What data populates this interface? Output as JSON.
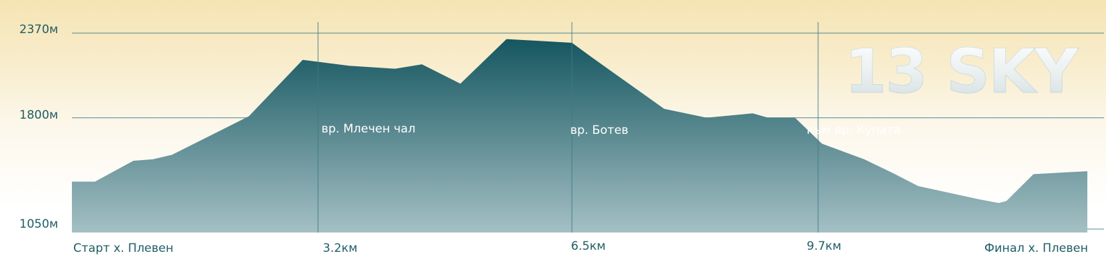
{
  "brand": "13 SKY",
  "colors": {
    "area_top": "#155660",
    "area_bottom": "#a4c0c4",
    "grid": "#3e7a84",
    "text": "#1f5c66"
  },
  "y_labels": [
    "2370м",
    "1800м",
    "1050м"
  ],
  "x_labels": [
    "Старт х. Плевен",
    "3.2км",
    "6.5км",
    "9.7км",
    "Финал х. Плевен"
  ],
  "peaks": [
    "вр. Млечен чал",
    "вр. Ботев",
    "към вр. Купата"
  ],
  "chart_data": {
    "type": "area",
    "title": "",
    "xlabel": "",
    "ylabel": "",
    "ylim": [
      1050,
      2370
    ],
    "xlim": [
      0,
      13.2
    ],
    "grid": true,
    "y_ticks": [
      1050,
      1800,
      2370
    ],
    "x_ticks": [
      0,
      3.2,
      6.5,
      9.7,
      13.2
    ],
    "x": [
      0,
      0.3,
      0.8,
      1.05,
      1.3,
      2.3,
      3.0,
      3.15,
      3.6,
      4.2,
      4.55,
      5.05,
      5.65,
      6.5,
      6.75,
      7.7,
      8.25,
      8.85,
      9.05,
      9.4,
      9.75,
      10.3,
      10.7,
      11.0,
      11.8,
      12.05,
      12.15,
      12.5,
      13.2
    ],
    "y": [
      1370,
      1370,
      1510,
      1520,
      1550,
      1810,
      2190,
      2180,
      2150,
      2130,
      2160,
      2030,
      2330,
      2305,
      2210,
      1860,
      1800,
      1830,
      1800,
      1800,
      1625,
      1520,
      1420,
      1340,
      1250,
      1225,
      1240,
      1420,
      1440
    ]
  }
}
